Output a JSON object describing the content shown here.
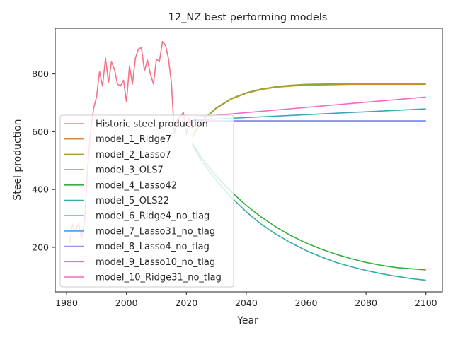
{
  "chart_data": {
    "type": "line",
    "title": "12_NZ best performing models",
    "xlabel": "Year",
    "ylabel": "Steel production",
    "xlim": [
      1976.2,
      2105.5
    ],
    "ylim": [
      46,
      958
    ],
    "xticks": [
      1980,
      2000,
      2020,
      2040,
      2060,
      2080,
      2100
    ],
    "yticks": [
      200,
      400,
      600,
      800
    ],
    "grid": false,
    "legend_position": "center-left",
    "series": [
      {
        "name": "Historic steel production",
        "color": "#f77189",
        "x": [
          1981,
          1982,
          1983,
          1984,
          1985,
          1986,
          1987,
          1988,
          1989,
          1990,
          1991,
          1992,
          1993,
          1994,
          1995,
          1996,
          1997,
          1998,
          1999,
          2000,
          2001,
          2002,
          2003,
          2004,
          2005,
          2006,
          2007,
          2008,
          2009,
          2010,
          2011,
          2012,
          2013,
          2014,
          2015,
          2016,
          2017,
          2018,
          2019,
          2020,
          2021,
          2022
        ],
        "y": [
          215,
          280,
          255,
          285,
          230,
          290,
          470,
          600,
          680,
          720,
          808,
          758,
          855,
          770,
          842,
          815,
          765,
          758,
          778,
          703,
          828,
          765,
          856,
          886,
          891,
          810,
          848,
          800,
          765,
          852,
          842,
          912,
          900,
          855,
          770,
          592,
          645,
          652,
          667,
          590,
          650,
          610
        ]
      },
      {
        "name": "model_1_Ridge7",
        "color": "#dc8932",
        "x": [
          2022,
          2025,
          2030,
          2035,
          2040,
          2045,
          2050,
          2055,
          2060,
          2065,
          2070,
          2075,
          2080,
          2085,
          2090,
          2095,
          2100
        ],
        "y": [
          582,
          634,
          681,
          713,
          733,
          746,
          754,
          758,
          761,
          762,
          763,
          764,
          764,
          764,
          764,
          764,
          764
        ]
      },
      {
        "name": "model_2_Lasso7",
        "color": "#ae9d31",
        "x": [
          2022,
          2025,
          2030,
          2035,
          2040,
          2045,
          2050,
          2055,
          2060,
          2065,
          2070,
          2075,
          2080,
          2085,
          2090,
          2095,
          2100
        ],
        "y": [
          583,
          635,
          682,
          714,
          734,
          747,
          755,
          760,
          763,
          764,
          765,
          766,
          766,
          766,
          766,
          766,
          766
        ]
      },
      {
        "name": "model_3_OLS7",
        "color": "#97a431",
        "x": [
          2022,
          2025,
          2030,
          2035,
          2040,
          2045,
          2050,
          2055,
          2060,
          2065,
          2070,
          2075,
          2080,
          2085,
          2090,
          2095,
          2100
        ],
        "y": [
          584,
          636,
          683,
          715,
          735,
          748,
          756,
          761,
          764,
          765,
          766,
          767,
          767,
          767,
          767,
          767,
          767
        ]
      },
      {
        "name": "model_4_Lasso42",
        "color": "#33b039",
        "x": [
          2022,
          2025,
          2030,
          2035,
          2040,
          2045,
          2050,
          2055,
          2060,
          2065,
          2070,
          2075,
          2080,
          2085,
          2090,
          2095,
          2100
        ],
        "y": [
          560,
          510,
          446,
          392,
          345,
          305,
          270,
          240,
          215,
          194,
          176,
          161,
          148,
          138,
          130,
          126,
          122
        ]
      },
      {
        "name": "model_5_OLS22",
        "color": "#36ada4",
        "x": [
          2022,
          2025,
          2030,
          2035,
          2040,
          2045,
          2050,
          2055,
          2060,
          2065,
          2070,
          2075,
          2080,
          2085,
          2090,
          2095,
          2100
        ],
        "y": [
          555,
          500,
          431,
          373,
          323,
          280,
          245,
          215,
          189,
          167,
          148,
          133,
          120,
          109,
          100,
          92,
          86
        ]
      },
      {
        "name": "model_6_Ridge4_no_tlag",
        "color": "#39a7b7",
        "x": [
          2022,
          2100
        ],
        "y": [
          640,
          679
        ]
      },
      {
        "name": "model_7_Lasso31_no_tlag",
        "color": "#3ba3ec",
        "x": [
          2022,
          2100
        ],
        "y": [
          638,
          638
        ]
      },
      {
        "name": "model_8_Lasso4_no_tlag",
        "color": "#a48cf4",
        "x": [
          2022,
          2100
        ],
        "y": [
          637,
          637
        ]
      },
      {
        "name": "model_9_Lasso10_no_tlag",
        "color": "#e866f4",
        "x": [
          2022,
          2100
        ],
        "y": [
          636,
          636
        ]
      },
      {
        "name": "model_10_Ridge31_no_tlag",
        "color": "#f668c2",
        "x": [
          2022,
          2100
        ],
        "y": [
          650,
          720
        ]
      }
    ]
  }
}
